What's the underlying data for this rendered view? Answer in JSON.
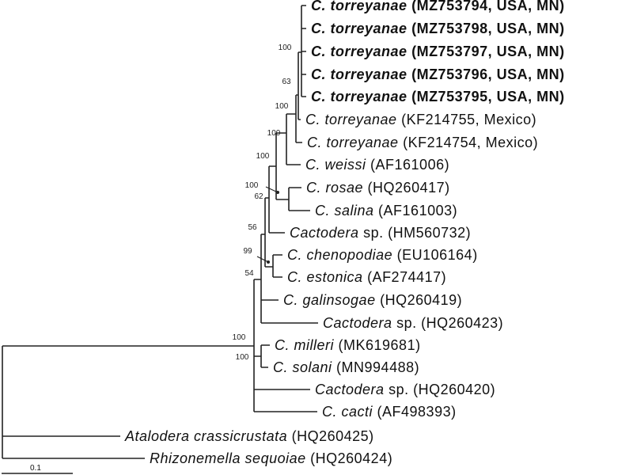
{
  "tree": {
    "tips": [
      {
        "name": "C. torreyanae",
        "accession": "(MZ753794, USA, MN)",
        "bold": true
      },
      {
        "name": "C. torreyanae",
        "accession": "(MZ753798, USA, MN)",
        "bold": true
      },
      {
        "name": "C. torreyanae",
        "accession": "(MZ753797, USA, MN)",
        "bold": true
      },
      {
        "name": "C. torreyanae",
        "accession": "(MZ753796, USA, MN)",
        "bold": true
      },
      {
        "name": "C. torreyanae",
        "accession": "(MZ753795, USA, MN)",
        "bold": true
      },
      {
        "name": "C. torreyanae",
        "accession": "(KF214755, Mexico)",
        "bold": false
      },
      {
        "name": "C. torreyanae",
        "accession": "(KF214754, Mexico)",
        "bold": false
      },
      {
        "name": "C. weissi",
        "accession": "(AF161006)",
        "bold": false
      },
      {
        "name": "C. rosae",
        "accession": "(HQ260417)",
        "bold": false
      },
      {
        "name": "C. salina",
        "accession": "(AF161003)",
        "bold": false
      },
      {
        "name": "Cactodera",
        "accession": "sp. (HM560732)",
        "bold": false
      },
      {
        "name": "C. chenopodiae",
        "accession": "(EU106164)",
        "bold": false
      },
      {
        "name": "C. estonica",
        "accession": "(AF274417)",
        "bold": false
      },
      {
        "name": "C. galinsogae",
        "accession": "(HQ260419)",
        "bold": false
      },
      {
        "name": "Cactodera",
        "accession": "sp. (HQ260423)",
        "bold": false
      },
      {
        "name": "C. milleri",
        "accession": "(MK619681)",
        "bold": false
      },
      {
        "name": "C. solani",
        "accession": "(MN994488)",
        "bold": false
      },
      {
        "name": "Cactodera",
        "accession": "sp. (HQ260420)",
        "bold": false
      },
      {
        "name": "C. cacti",
        "accession": "(AF498393)",
        "bold": false
      },
      {
        "name": "Atalodera crassicrustata",
        "accession": "(HQ260425)",
        "bold": false
      },
      {
        "name": "Rhizonemella sequoiae",
        "accession": "(HQ260424)",
        "bold": false
      }
    ],
    "support_values": [
      "100",
      "63",
      "100",
      "100",
      "100",
      "100",
      "62",
      "56",
      "99",
      "54",
      "100",
      "100"
    ],
    "scale_bar": "0.1"
  }
}
